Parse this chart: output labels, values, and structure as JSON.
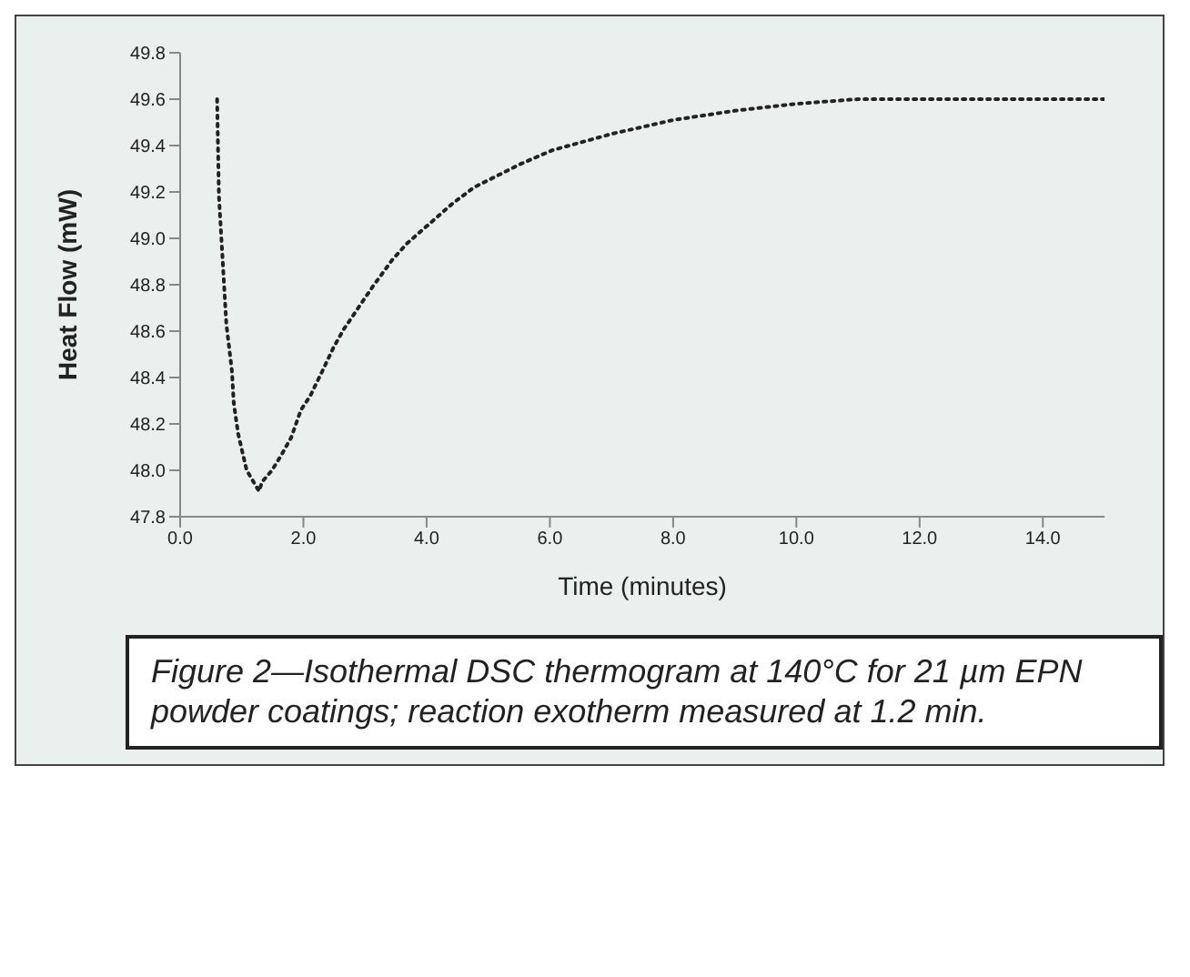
{
  "chart_data": {
    "type": "line",
    "xlabel": "Time (minutes)",
    "ylabel": "Heat Flow (mW)",
    "annotations": [
      "Figure 2—Isothermal DSC thermogram at 140°C for 21 µm EPN powder coatings; reaction exotherm measured at 1.2 min."
    ],
    "series": [
      {
        "color": "#222222",
        "x": [
          0.6,
          0.63,
          0.7,
          0.75,
          0.84,
          0.87,
          0.94,
          1.0,
          1.08,
          1.28,
          1.33,
          1.49,
          1.63,
          1.8,
          1.96,
          2.11,
          2.33,
          2.49,
          2.66,
          3.12,
          3.45,
          3.69,
          4.42,
          4.77,
          5.52,
          6.04,
          7.0,
          8.0,
          9.0,
          10.0,
          11.0,
          15.0
        ],
        "values": [
          49.6,
          49.18,
          48.86,
          48.63,
          48.43,
          48.29,
          48.16,
          48.09,
          48.0,
          47.91,
          47.95,
          48.0,
          48.06,
          48.14,
          48.26,
          48.32,
          48.44,
          48.53,
          48.61,
          48.79,
          48.91,
          48.98,
          49.15,
          49.22,
          49.32,
          49.38,
          49.45,
          49.51,
          49.55,
          49.58,
          49.6,
          49.6
        ]
      }
    ],
    "xlim": [
      0,
      15
    ],
    "xticks": [
      {
        "value": 0,
        "label": "0.0"
      },
      {
        "value": 2,
        "label": "2.0"
      },
      {
        "value": 4,
        "label": "4.0"
      },
      {
        "value": 6,
        "label": "6.0"
      },
      {
        "value": 8,
        "label": "8.0"
      },
      {
        "value": 10,
        "label": "10.0"
      },
      {
        "value": 12,
        "label": "12.0"
      },
      {
        "value": 14,
        "label": "14.0"
      }
    ],
    "ylim": [
      47.8,
      49.8
    ],
    "yticks": [
      47.8,
      {
        "value": 48,
        "label": "48.0"
      },
      48.2,
      48.4,
      48.6,
      48.8,
      {
        "value": 49,
        "label": "49.0"
      },
      49.2,
      49.4,
      49.6,
      49.8
    ],
    "line_style": "dotted",
    "marker": "none"
  }
}
